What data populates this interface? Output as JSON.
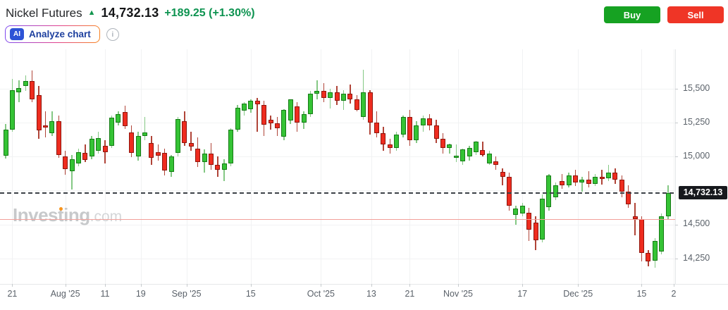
{
  "header": {
    "title": "Nickel Futures",
    "price": "14,732.13",
    "change": "+189.25 (+1.30%)",
    "analyze_label": "Analyze chart",
    "ai_badge": "AI",
    "info_glyph": "i",
    "buy_label": "Buy",
    "sell_label": "Sell"
  },
  "watermark": {
    "brand": "Investing",
    "suffix": ".com"
  },
  "chart": {
    "price_label": "14,732.13"
  },
  "chart_data": {
    "type": "candlestick",
    "title": "Nickel Futures daily candlestick chart, Jul 21 - Dec 2025",
    "last_price": 14732.13,
    "change": 189.25,
    "change_pct": 1.3,
    "ylim": [
      14062,
      15788
    ],
    "grid": true,
    "support_line": 14541,
    "y_axis": [
      {
        "value": 15500,
        "label": "15,500"
      },
      {
        "value": 15250,
        "label": "15,250"
      },
      {
        "value": 15000,
        "label": "15,000"
      },
      {
        "value": 14500,
        "label": "14,500"
      },
      {
        "value": 14250,
        "label": "14,250"
      }
    ],
    "y_gridlines": [
      15500,
      15250,
      15000,
      14750,
      14500,
      14250
    ],
    "x_ticks": [
      {
        "i": 1,
        "label": "21"
      },
      {
        "i": 9,
        "label": "Aug '25"
      },
      {
        "i": 15,
        "label": "11"
      },
      {
        "i": 20.4,
        "label": "19"
      },
      {
        "i": 27.3,
        "label": "Sep '25"
      },
      {
        "i": 37,
        "label": "15"
      },
      {
        "i": 47.6,
        "label": "Oct '25"
      },
      {
        "i": 55.2,
        "label": "13"
      },
      {
        "i": 61,
        "label": "21"
      },
      {
        "i": 68.3,
        "label": "Nov '25"
      },
      {
        "i": 78,
        "label": "17"
      },
      {
        "i": 86.4,
        "label": "Dec '25"
      },
      {
        "i": 96,
        "label": "15"
      },
      {
        "i": 100.85,
        "label": "2"
      }
    ],
    "candles": [
      [
        15006,
        15240,
        14985,
        15196
      ],
      [
        15196,
        15570,
        15180,
        15490
      ],
      [
        15470,
        15560,
        15400,
        15505
      ],
      [
        15520,
        15595,
        15480,
        15555
      ],
      [
        15555,
        15635,
        15400,
        15420
      ],
      [
        15450,
        15520,
        15130,
        15190
      ],
      [
        15230,
        15330,
        15140,
        15215
      ],
      [
        15170,
        15330,
        15150,
        15260
      ],
      [
        15260,
        15300,
        14990,
        15010
      ],
      [
        15000,
        15040,
        14865,
        14905
      ],
      [
        14890,
        15010,
        14755,
        14980
      ],
      [
        14950,
        15060,
        14930,
        15030
      ],
      [
        15025,
        15090,
        14960,
        14975
      ],
      [
        15000,
        15150,
        14980,
        15128
      ],
      [
        15040,
        15180,
        15020,
        15135
      ],
      [
        15080,
        15120,
        14950,
        15030
      ],
      [
        15077,
        15300,
        15060,
        15284
      ],
      [
        15247,
        15330,
        15230,
        15309
      ],
      [
        15325,
        15375,
        15200,
        15222
      ],
      [
        15175,
        15230,
        14995,
        15025
      ],
      [
        14998,
        15180,
        14970,
        15150
      ],
      [
        15150,
        15290,
        15120,
        15175
      ],
      [
        15100,
        15150,
        14940,
        14990
      ],
      [
        15030,
        15090,
        14970,
        15005
      ],
      [
        15025,
        15060,
        14860,
        14897
      ],
      [
        14888,
        15010,
        14850,
        15000
      ],
      [
        15025,
        15290,
        15000,
        15273
      ],
      [
        15258,
        15330,
        15080,
        15100
      ],
      [
        15100,
        15180,
        15040,
        15070
      ],
      [
        15060,
        15140,
        14920,
        14960
      ],
      [
        14960,
        15050,
        14880,
        15020
      ],
      [
        15020,
        15100,
        14900,
        14940
      ],
      [
        14940,
        15000,
        14850,
        14900
      ],
      [
        14900,
        14980,
        14820,
        14950
      ],
      [
        14950,
        15210,
        14930,
        15195
      ],
      [
        15195,
        15380,
        15180,
        15360
      ],
      [
        15335,
        15400,
        15300,
        15390
      ],
      [
        15345,
        15420,
        15320,
        15410
      ],
      [
        15410,
        15430,
        15180,
        15381
      ],
      [
        15381,
        15410,
        15150,
        15232
      ],
      [
        15268,
        15300,
        15196,
        15242
      ],
      [
        15242,
        15290,
        15150,
        15206
      ],
      [
        15144,
        15350,
        15120,
        15340
      ],
      [
        15263,
        15420,
        15240,
        15418
      ],
      [
        15366,
        15400,
        15180,
        15247
      ],
      [
        15247,
        15330,
        15200,
        15310
      ],
      [
        15310,
        15480,
        15290,
        15460
      ],
      [
        15460,
        15560,
        15420,
        15480
      ],
      [
        15480,
        15540,
        15400,
        15430
      ],
      [
        15430,
        15500,
        15350,
        15470
      ],
      [
        15470,
        15520,
        15380,
        15410
      ],
      [
        15410,
        15490,
        15340,
        15460
      ],
      [
        15460,
        15530,
        15390,
        15420
      ],
      [
        15420,
        15450,
        15330,
        15340
      ],
      [
        15290,
        15640,
        15270,
        15470
      ],
      [
        15470,
        15490,
        15160,
        15250
      ],
      [
        15250,
        15330,
        15140,
        15170
      ],
      [
        15170,
        15220,
        15040,
        15090
      ],
      [
        15090,
        15130,
        15020,
        15060
      ],
      [
        15060,
        15180,
        15040,
        15160
      ],
      [
        15160,
        15300,
        15140,
        15290
      ],
      [
        15290,
        15340,
        15080,
        15120
      ],
      [
        15120,
        15260,
        15100,
        15230
      ],
      [
        15230,
        15300,
        15180,
        15280
      ],
      [
        15280,
        15310,
        15190,
        15230
      ],
      [
        15230,
        15270,
        15100,
        15130
      ],
      [
        15130,
        15170,
        15020,
        15060
      ],
      [
        15060,
        15095,
        15020,
        15090
      ],
      [
        14995,
        15090,
        14960,
        15005
      ],
      [
        14965,
        15060,
        14940,
        15052
      ],
      [
        15000,
        15080,
        14970,
        15065
      ],
      [
        15030,
        15115,
        15010,
        15110
      ],
      [
        15045,
        15110,
        15000,
        15008
      ],
      [
        14950,
        15040,
        14940,
        15020
      ],
      [
        14965,
        15000,
        14900,
        14940
      ],
      [
        14885,
        14910,
        14790,
        14850
      ],
      [
        14850,
        14880,
        14600,
        14640
      ],
      [
        14570,
        14640,
        14500,
        14615
      ],
      [
        14580,
        14660,
        14560,
        14640
      ],
      [
        14585,
        14620,
        14380,
        14460
      ],
      [
        14515,
        14560,
        14310,
        14385
      ],
      [
        14390,
        14720,
        14370,
        14690
      ],
      [
        14625,
        14870,
        14600,
        14860
      ],
      [
        14700,
        14810,
        14680,
        14790
      ],
      [
        14820,
        14870,
        14760,
        14790
      ],
      [
        14790,
        14880,
        14770,
        14860
      ],
      [
        14860,
        14900,
        14780,
        14810
      ],
      [
        14810,
        14850,
        14740,
        14830
      ],
      [
        14830,
        14890,
        14770,
        14800
      ],
      [
        14800,
        14870,
        14780,
        14850
      ],
      [
        14850,
        14900,
        14790,
        14840
      ],
      [
        14840,
        14940,
        14820,
        14880
      ],
      [
        14880,
        14910,
        14800,
        14830
      ],
      [
        14830,
        14860,
        14700,
        14740
      ],
      [
        14740,
        14790,
        14620,
        14650
      ],
      [
        14560,
        14660,
        14420,
        14540
      ],
      [
        14540,
        14560,
        14230,
        14290
      ],
      [
        14290,
        14310,
        14190,
        14230
      ],
      [
        14230,
        14400,
        14180,
        14380
      ],
      [
        14300,
        14580,
        14280,
        14560
      ],
      [
        14560,
        14790,
        14540,
        14732.13
      ]
    ],
    "colors": {
      "up_fill": "#35c335",
      "up_border": "#157a15",
      "up_wick": "#84c884",
      "down_fill": "#ee2c1f",
      "down_border": "#8f150c",
      "down_wick": "#b04438",
      "last_price_line": "#3c4147",
      "support": "#f2a09a",
      "buy": "#16a222",
      "sell": "#ef3526",
      "change_text": "#0d9350"
    }
  }
}
